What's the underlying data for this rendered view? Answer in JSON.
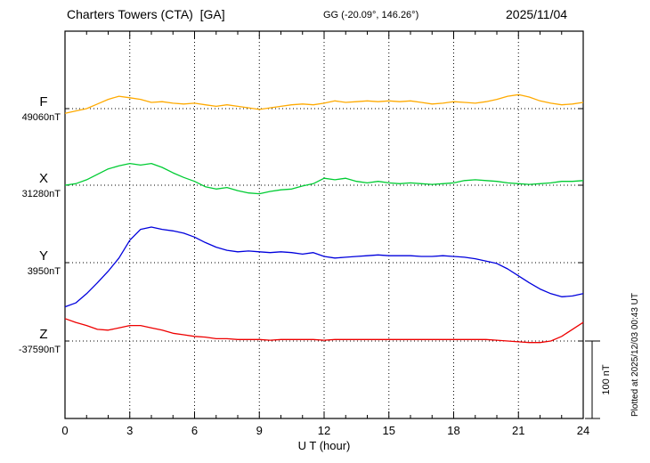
{
  "header": {
    "station": "Charters Towers (CTA)  [GA]",
    "coords": "GG (-20.09°, 146.26°)",
    "date": "2025/11/04"
  },
  "chart_data": {
    "type": "line",
    "title": "Charters Towers (CTA) [GA] magnetogram 2025/11/04",
    "xlabel": "U T (hour)",
    "xlim": [
      0,
      24
    ],
    "x_ticks": [
      0,
      3,
      6,
      9,
      12,
      15,
      18,
      21,
      24
    ],
    "grid": "dotted vertical at 3h intervals, dotted horizontal at each component baseline",
    "scale_bar": {
      "label": "100 nT",
      "nT": 100
    },
    "plotted_at": "Plotted at 2025/12/03 00:43 UT",
    "x_hours": [
      0,
      0.5,
      1,
      1.5,
      2,
      2.5,
      3,
      3.5,
      4,
      4.5,
      5,
      5.5,
      6,
      6.5,
      7,
      7.5,
      8,
      8.5,
      9,
      9.5,
      10,
      10.5,
      11,
      11.5,
      12,
      12.5,
      13,
      13.5,
      14,
      14.5,
      15,
      15.5,
      16,
      16.5,
      17,
      17.5,
      18,
      18.5,
      19,
      19.5,
      20,
      20.5,
      21,
      21.5,
      22,
      22.5,
      23,
      23.5,
      24
    ],
    "series": [
      {
        "name": "F",
        "baseline_label": "49060nT",
        "baseline_nT": 49060,
        "color": "#ffaa00",
        "offsets_nT": [
          -6,
          -3,
          0,
          6,
          12,
          16,
          14,
          12,
          8,
          9,
          7,
          6,
          7,
          5,
          3,
          5,
          3,
          1,
          -1,
          1,
          3,
          5,
          6,
          5,
          7,
          10,
          8,
          9,
          10,
          9,
          10,
          9,
          10,
          8,
          6,
          7,
          9,
          8,
          7,
          9,
          12,
          16,
          18,
          15,
          10,
          7,
          5,
          6,
          8
        ]
      },
      {
        "name": "X",
        "baseline_label": "31280nT",
        "baseline_nT": 31280,
        "color": "#00cc33",
        "offsets_nT": [
          0,
          2,
          7,
          14,
          21,
          25,
          28,
          26,
          28,
          23,
          16,
          10,
          5,
          -2,
          -5,
          -3,
          -7,
          -10,
          -11,
          -8,
          -6,
          -5,
          -1,
          2,
          9,
          7,
          9,
          5,
          3,
          5,
          3,
          2,
          3,
          2,
          1,
          2,
          3,
          6,
          7,
          6,
          5,
          3,
          2,
          1,
          2,
          3,
          5,
          5,
          6
        ]
      },
      {
        "name": "Y",
        "baseline_label": "3950nT",
        "baseline_nT": 3950,
        "color": "#0000dd",
        "offsets_nT": [
          -57,
          -52,
          -40,
          -26,
          -11,
          6,
          29,
          43,
          46,
          43,
          41,
          38,
          33,
          26,
          20,
          16,
          14,
          15,
          14,
          13,
          14,
          13,
          11,
          13,
          8,
          6,
          7,
          8,
          9,
          10,
          9,
          9,
          9,
          8,
          8,
          9,
          8,
          7,
          5,
          2,
          -1,
          -8,
          -17,
          -26,
          -34,
          -40,
          -44,
          -43,
          -40
        ]
      },
      {
        "name": "Z",
        "baseline_label": "-37590nT",
        "baseline_nT": -37590,
        "color": "#ee0000",
        "offsets_nT": [
          29,
          24,
          20,
          15,
          14,
          17,
          20,
          20,
          17,
          14,
          10,
          8,
          6,
          5,
          3,
          3,
          2,
          2,
          2,
          1,
          2,
          2,
          2,
          2,
          1,
          2,
          2,
          2,
          2,
          2,
          2,
          2,
          2,
          2,
          2,
          2,
          2,
          2,
          2,
          2,
          1,
          0,
          -1,
          -2,
          -2,
          0,
          6,
          15,
          24
        ]
      }
    ]
  }
}
